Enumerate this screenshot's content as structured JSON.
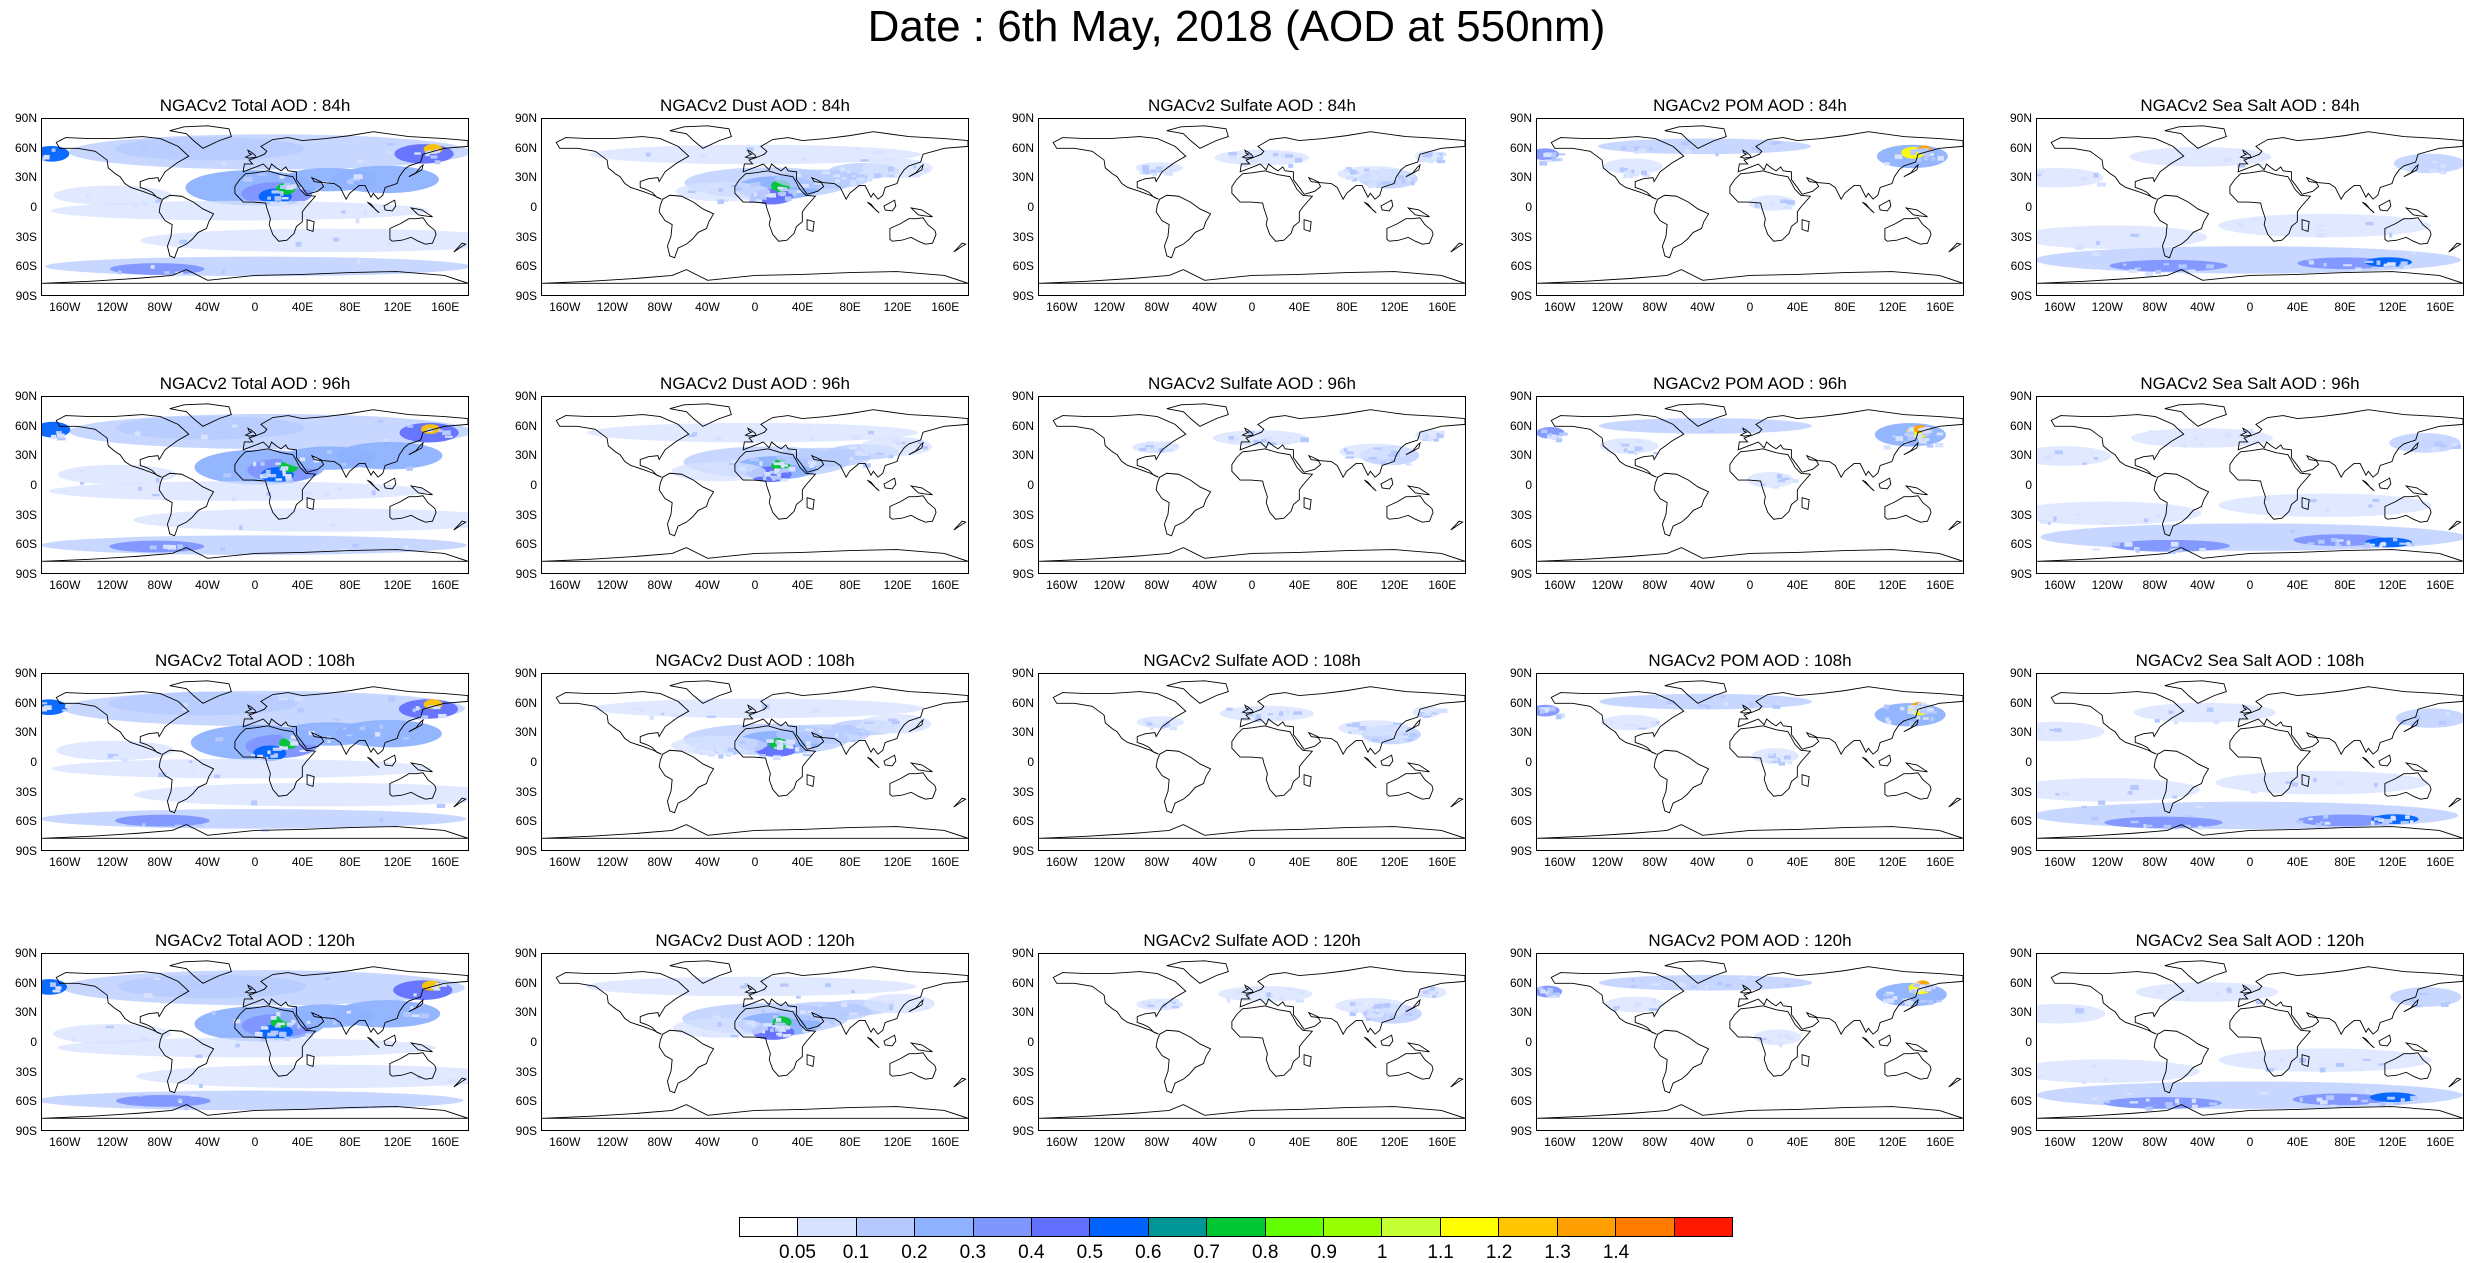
{
  "title": "Date : 6th May, 2018 (AOD at 550nm)",
  "y_ticks": [
    "90N",
    "60N",
    "30N",
    "0",
    "30S",
    "60S",
    "90S"
  ],
  "x_ticks": [
    "160W",
    "120W",
    "80W",
    "40W",
    "0",
    "40E",
    "80E",
    "120E",
    "160E"
  ],
  "panels": [
    {
      "title": "NGACv2 Total AOD : 84h",
      "species": "total"
    },
    {
      "title": "NGACv2 Dust AOD : 84h",
      "species": "dust"
    },
    {
      "title": "NGACv2 Sulfate AOD : 84h",
      "species": "sulfate"
    },
    {
      "title": "NGACv2 POM AOD : 84h",
      "species": "pom"
    },
    {
      "title": "NGACv2 Sea Salt AOD : 84h",
      "species": "seasalt"
    },
    {
      "title": "NGACv2 Total AOD : 96h",
      "species": "total"
    },
    {
      "title": "NGACv2 Dust AOD : 96h",
      "species": "dust"
    },
    {
      "title": "NGACv2 Sulfate AOD : 96h",
      "species": "sulfate"
    },
    {
      "title": "NGACv2 POM AOD : 96h",
      "species": "pom"
    },
    {
      "title": "NGACv2 Sea Salt AOD : 96h",
      "species": "seasalt"
    },
    {
      "title": "NGACv2 Total AOD : 108h",
      "species": "total"
    },
    {
      "title": "NGACv2 Dust AOD : 108h",
      "species": "dust"
    },
    {
      "title": "NGACv2 Sulfate AOD : 108h",
      "species": "sulfate"
    },
    {
      "title": "NGACv2 POM AOD : 108h",
      "species": "pom"
    },
    {
      "title": "NGACv2 Sea Salt AOD : 108h",
      "species": "seasalt"
    },
    {
      "title": "NGACv2 Total AOD : 120h",
      "species": "total"
    },
    {
      "title": "NGACv2 Dust AOD : 120h",
      "species": "dust"
    },
    {
      "title": "NGACv2 Sulfate AOD : 120h",
      "species": "sulfate"
    },
    {
      "title": "NGACv2 POM AOD : 120h",
      "species": "pom"
    },
    {
      "title": "NGACv2 Sea Salt  AOD : 120h",
      "species": "seasalt"
    }
  ],
  "colorbar": {
    "colors": [
      "#ffffff",
      "#d6e2ff",
      "#b5c9ff",
      "#8eb2ff",
      "#7f96ff",
      "#6370ff",
      "#0063ff",
      "#009696",
      "#00c633",
      "#63ff00",
      "#96ff00",
      "#c6ff33",
      "#ffff00",
      "#ffc600",
      "#ffa000",
      "#ff7c00",
      "#ff1900"
    ],
    "labels": [
      "0.05",
      "0.1",
      "0.2",
      "0.3",
      "0.4",
      "0.5",
      "0.6",
      "0.7",
      "0.8",
      "0.9",
      "1",
      "1.1",
      "1.2",
      "1.3",
      "1.4"
    ]
  }
}
